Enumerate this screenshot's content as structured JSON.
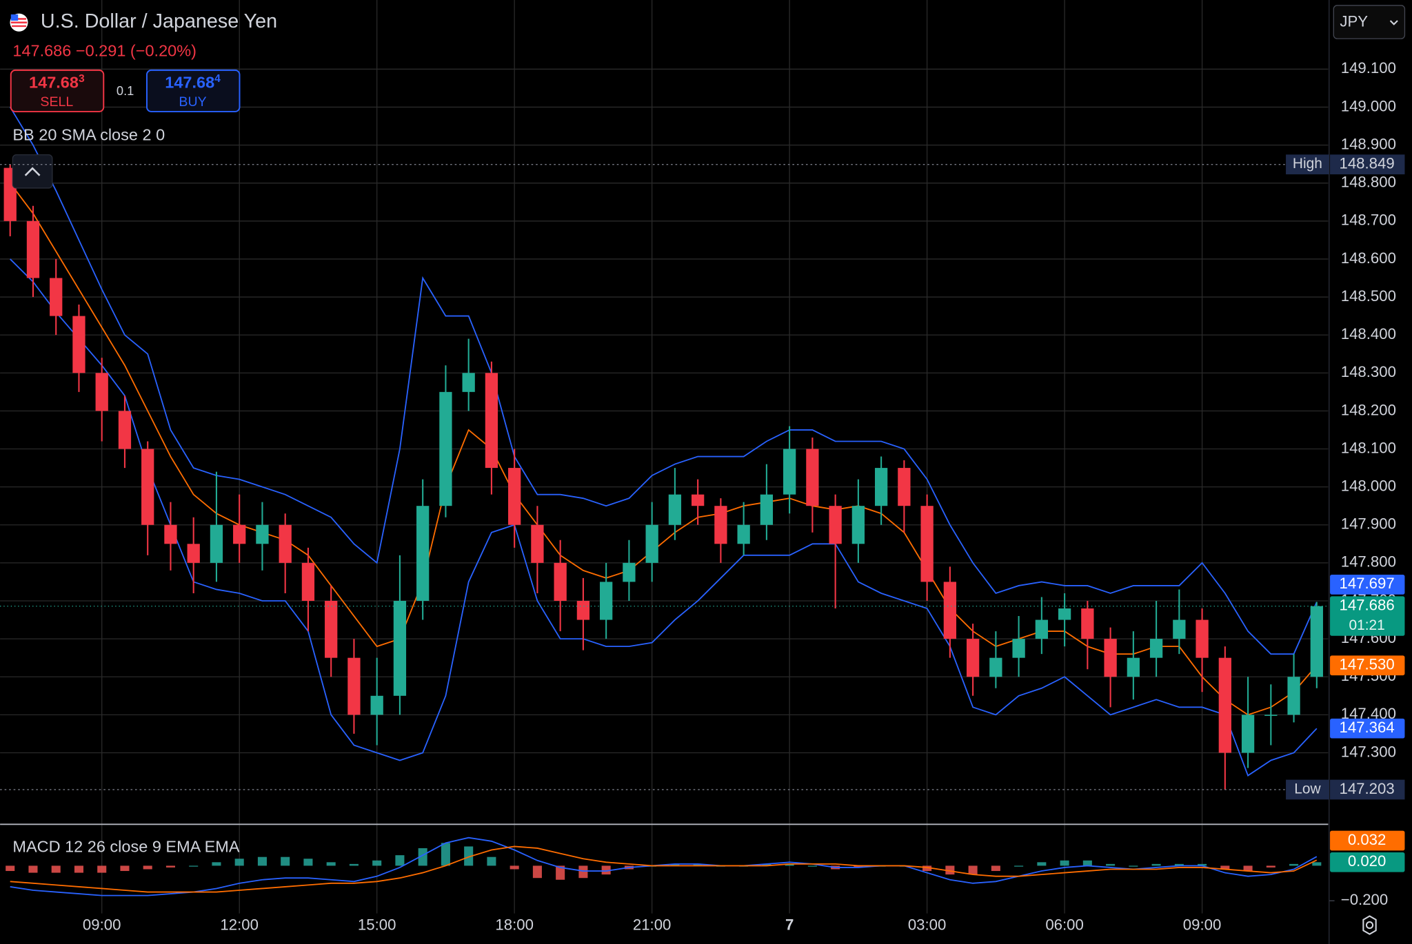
{
  "chart_data": {
    "type": "candlestick",
    "title": "U.S. Dollar / Japanese Yen",
    "currency": "JPY",
    "quote": {
      "last": "147.686",
      "change": "−0.291",
      "change_percent": "(−0.20%)",
      "sell": "147.68",
      "sell_pip": "3",
      "sell_label": "SELL",
      "spread": "0.1",
      "buy": "147.68",
      "buy_pip": "4",
      "buy_label": "BUY"
    },
    "x": [
      7,
      7.5,
      8,
      8.5,
      9,
      9.5,
      10,
      10.5,
      11,
      11.5,
      12,
      12.5,
      13,
      13.5,
      14,
      14.5,
      15,
      15.5,
      16,
      16.5,
      17,
      17.5,
      18,
      18.5,
      19,
      19.5,
      20,
      20.5,
      21,
      21.5,
      22,
      22.5,
      23,
      23.5,
      24,
      24.5,
      25,
      25.5,
      26,
      26.5,
      27,
      27.5,
      28,
      28.5,
      29,
      29.5,
      30,
      30.5,
      31,
      31.5,
      32,
      32.5,
      33,
      33.5,
      34,
      34.5,
      35,
      35.5
    ],
    "open": [
      148.84,
      148.7,
      148.55,
      148.45,
      148.3,
      148.2,
      148.1,
      147.9,
      147.85,
      147.8,
      147.9,
      147.85,
      147.9,
      147.8,
      147.7,
      147.55,
      147.4,
      147.45,
      147.7,
      147.95,
      148.25,
      148.3,
      148.05,
      147.9,
      147.8,
      147.7,
      147.65,
      147.75,
      147.8,
      147.9,
      147.98,
      147.95,
      147.85,
      147.9,
      147.98,
      148.1,
      147.95,
      147.85,
      147.95,
      148.05,
      147.95,
      147.75,
      147.6,
      147.5,
      147.55,
      147.6,
      147.65,
      147.68,
      147.6,
      147.5,
      147.55,
      147.6,
      147.65,
      147.55,
      147.3,
      147.4,
      147.4,
      147.5
    ],
    "high": [
      148.849,
      148.74,
      148.6,
      148.48,
      148.34,
      148.24,
      148.12,
      147.96,
      147.92,
      148.04,
      147.98,
      147.96,
      147.93,
      147.84,
      147.74,
      147.6,
      147.55,
      147.82,
      148.02,
      148.32,
      148.39,
      148.33,
      148.1,
      147.95,
      147.86,
      147.76,
      147.8,
      147.86,
      147.96,
      148.05,
      148.02,
      147.97,
      147.96,
      148.06,
      148.16,
      148.13,
      147.98,
      148.02,
      148.08,
      148.07,
      147.98,
      147.79,
      147.64,
      147.62,
      147.66,
      147.71,
      147.72,
      147.7,
      147.63,
      147.62,
      147.7,
      147.73,
      147.68,
      147.58,
      147.5,
      147.48,
      147.56,
      147.697
    ],
    "low": [
      148.66,
      148.5,
      148.4,
      148.25,
      148.12,
      148.05,
      147.82,
      147.78,
      147.72,
      147.75,
      147.8,
      147.78,
      147.72,
      147.62,
      147.5,
      147.35,
      147.32,
      147.4,
      147.65,
      147.92,
      148.2,
      147.98,
      147.84,
      147.72,
      147.62,
      147.57,
      147.6,
      147.7,
      147.75,
      147.86,
      147.9,
      147.8,
      147.82,
      147.86,
      147.93,
      147.88,
      147.68,
      147.8,
      147.9,
      147.88,
      147.7,
      147.55,
      147.45,
      147.47,
      147.5,
      147.56,
      147.58,
      147.52,
      147.42,
      147.44,
      147.5,
      147.56,
      147.46,
      147.203,
      147.26,
      147.32,
      147.38,
      147.47
    ],
    "close": [
      148.7,
      148.55,
      148.45,
      148.3,
      148.2,
      148.1,
      147.9,
      147.85,
      147.8,
      147.9,
      147.85,
      147.9,
      147.8,
      147.7,
      147.55,
      147.4,
      147.45,
      147.7,
      147.95,
      148.25,
      148.3,
      148.05,
      147.9,
      147.8,
      147.7,
      147.65,
      147.75,
      147.8,
      147.9,
      147.98,
      147.95,
      147.85,
      147.9,
      147.98,
      148.1,
      147.95,
      147.85,
      147.95,
      148.05,
      147.95,
      147.75,
      147.6,
      147.5,
      147.55,
      147.6,
      147.65,
      147.68,
      147.6,
      147.5,
      147.55,
      147.6,
      147.65,
      147.55,
      147.3,
      147.4,
      147.4,
      147.5,
      147.686
    ],
    "up_color": "#22ab94",
    "down_color": "#f23645",
    "xlim": [
      6.78,
      35.75
    ],
    "xticks": [
      {
        "value": 9,
        "label": "09:00"
      },
      {
        "value": 12,
        "label": "12:00"
      },
      {
        "value": 15,
        "label": "15:00"
      },
      {
        "value": 18,
        "label": "18:00"
      },
      {
        "value": 21,
        "label": "21:00"
      },
      {
        "value": 24,
        "label": "7",
        "bold": true
      },
      {
        "value": 27,
        "label": "03:00"
      },
      {
        "value": 30,
        "label": "06:00"
      },
      {
        "value": 33,
        "label": "09:00"
      }
    ],
    "ylim": [
      147.114,
      149.282
    ],
    "yticks": [
      {
        "value": 147.3,
        "label": "147.300"
      },
      {
        "value": 147.4,
        "label": "147.400"
      },
      {
        "value": 147.5,
        "label": "147.500"
      },
      {
        "value": 147.6,
        "label": "147.600"
      },
      {
        "value": 147.7,
        "label": "147.700"
      },
      {
        "value": 147.8,
        "label": "147.800"
      },
      {
        "value": 147.9,
        "label": "147.900"
      },
      {
        "value": 148,
        "label": "148.000"
      },
      {
        "value": 148.1,
        "label": "148.100"
      },
      {
        "value": 148.2,
        "label": "148.200"
      },
      {
        "value": 148.3,
        "label": "148.300"
      },
      {
        "value": 148.4,
        "label": "148.400"
      },
      {
        "value": 148.5,
        "label": "148.500"
      },
      {
        "value": 148.6,
        "label": "148.600"
      },
      {
        "value": 148.7,
        "label": "148.700"
      },
      {
        "value": 148.8,
        "label": "148.800"
      },
      {
        "value": 148.9,
        "label": "148.900"
      },
      {
        "value": 149,
        "label": "149.000"
      },
      {
        "value": 149.1,
        "label": "149.100"
      }
    ],
    "grid": true,
    "bollinger": {
      "name": "BB 20 SMA close 2 0",
      "band_color": "#2962ff",
      "basis_color": "#ff6d00",
      "upper": [
        149.0,
        148.9,
        148.78,
        148.65,
        148.52,
        148.4,
        148.35,
        148.15,
        148.05,
        148.03,
        148.02,
        148.0,
        147.98,
        147.95,
        147.92,
        147.85,
        147.8,
        148.1,
        148.55,
        148.45,
        148.45,
        148.3,
        148.08,
        147.98,
        147.98,
        147.97,
        147.95,
        147.97,
        148.03,
        148.06,
        148.08,
        148.08,
        148.08,
        148.12,
        148.15,
        148.15,
        148.12,
        148.12,
        148.12,
        148.1,
        148.02,
        147.9,
        147.8,
        147.72,
        147.74,
        147.75,
        147.74,
        147.74,
        147.72,
        147.74,
        147.74,
        147.74,
        147.8,
        147.72,
        147.62,
        147.56,
        147.56,
        147.697
      ],
      "basis": [
        148.8,
        148.72,
        148.62,
        148.52,
        148.42,
        148.32,
        148.2,
        148.08,
        147.98,
        147.93,
        147.9,
        147.88,
        147.86,
        147.82,
        147.74,
        147.66,
        147.58,
        147.6,
        147.75,
        148.0,
        148.15,
        148.1,
        147.98,
        147.9,
        147.82,
        147.78,
        147.76,
        147.78,
        147.83,
        147.88,
        147.92,
        147.93,
        147.95,
        147.96,
        147.97,
        147.95,
        147.94,
        147.95,
        147.93,
        147.88,
        147.78,
        147.68,
        147.62,
        147.58,
        147.6,
        147.62,
        147.62,
        147.58,
        147.56,
        147.56,
        147.58,
        147.58,
        147.5,
        147.44,
        147.4,
        147.42,
        147.46,
        147.53
      ],
      "lower": [
        148.6,
        148.54,
        148.46,
        148.39,
        148.32,
        148.24,
        148.05,
        147.9,
        147.75,
        147.73,
        147.72,
        147.7,
        147.7,
        147.62,
        147.4,
        147.32,
        147.3,
        147.28,
        147.3,
        147.45,
        147.75,
        147.88,
        147.9,
        147.7,
        147.6,
        147.6,
        147.58,
        147.58,
        147.59,
        147.65,
        147.7,
        147.76,
        147.82,
        147.82,
        147.82,
        147.85,
        147.85,
        147.75,
        147.72,
        147.7,
        147.68,
        147.58,
        147.42,
        147.4,
        147.45,
        147.47,
        147.5,
        147.45,
        147.4,
        147.42,
        147.44,
        147.42,
        147.42,
        147.4,
        147.24,
        147.28,
        147.3,
        147.364
      ]
    },
    "price_labels": [
      {
        "value": 147.697,
        "label": "147.697",
        "color": "#2962ff"
      },
      {
        "value": 147.686,
        "label": "147.686",
        "color": "#089981",
        "countdown": "01:21"
      },
      {
        "value": 147.53,
        "label": "147.530",
        "color": "#ff6d00"
      },
      {
        "value": 147.364,
        "label": "147.364",
        "color": "#2962ff"
      }
    ],
    "high_mark": {
      "text": "High",
      "value": 148.849,
      "label": "148.849"
    },
    "low_mark": {
      "text": "Low",
      "value": 147.203,
      "label": "147.203"
    },
    "macd": {
      "name": "MACD 12 26 close 9 EMA EMA",
      "macd_color": "#2962ff",
      "signal_color": "#ff6d00",
      "up_color": "#26a69a",
      "down_color": "#ef5350",
      "ylim": [
        -0.272,
        0.226
      ],
      "yticks": [
        {
          "value": -0.2,
          "label": "−0.200"
        }
      ],
      "macd": [
        -0.12,
        -0.14,
        -0.15,
        -0.16,
        -0.17,
        -0.17,
        -0.17,
        -0.16,
        -0.15,
        -0.13,
        -0.1,
        -0.08,
        -0.07,
        -0.07,
        -0.08,
        -0.09,
        -0.06,
        -0.01,
        0.06,
        0.13,
        0.16,
        0.14,
        0.09,
        0.03,
        -0.01,
        -0.03,
        -0.03,
        -0.01,
        0,
        0.01,
        0.01,
        0,
        0,
        0.01,
        0.02,
        0.01,
        -0.01,
        -0.01,
        0,
        0,
        -0.04,
        -0.08,
        -0.1,
        -0.09,
        -0.06,
        -0.03,
        -0.01,
        0,
        -0.01,
        -0.02,
        -0.01,
        0,
        0,
        -0.04,
        -0.06,
        -0.05,
        -0.02,
        0.052
      ],
      "signal": [
        -0.09,
        -0.1,
        -0.11,
        -0.12,
        -0.13,
        -0.14,
        -0.15,
        -0.15,
        -0.15,
        -0.15,
        -0.14,
        -0.13,
        -0.12,
        -0.11,
        -0.1,
        -0.1,
        -0.09,
        -0.07,
        -0.04,
        0,
        0.05,
        0.09,
        0.11,
        0.1,
        0.07,
        0.04,
        0.02,
        0.01,
        0,
        0,
        0,
        0,
        0,
        0,
        0.01,
        0.01,
        0.01,
        0,
        0,
        0,
        -0.01,
        -0.03,
        -0.05,
        -0.06,
        -0.06,
        -0.05,
        -0.04,
        -0.03,
        -0.02,
        -0.02,
        -0.02,
        -0.01,
        -0.01,
        -0.02,
        -0.03,
        -0.04,
        -0.03,
        0.032
      ],
      "histogram": [
        -0.03,
        -0.04,
        -0.04,
        -0.04,
        -0.04,
        -0.03,
        -0.02,
        -0.01,
        0,
        0.02,
        0.04,
        0.05,
        0.05,
        0.04,
        0.02,
        0.01,
        0.03,
        0.06,
        0.1,
        0.13,
        0.11,
        0.05,
        -0.02,
        -0.07,
        -0.08,
        -0.07,
        -0.05,
        -0.02,
        0,
        0.01,
        0.01,
        0,
        0,
        0.01,
        0.01,
        0,
        -0.02,
        -0.01,
        0,
        0,
        -0.03,
        -0.05,
        -0.05,
        -0.03,
        0,
        0.02,
        0.03,
        0.03,
        0.01,
        0,
        0.01,
        0.01,
        0.01,
        -0.02,
        -0.03,
        -0.01,
        0.01,
        0.02
      ],
      "labels": [
        {
          "value": 0.032,
          "label": "0.032",
          "color": "#ff6d00"
        },
        {
          "value": 0.02,
          "label": "0.020",
          "color": "#089981"
        }
      ]
    }
  }
}
